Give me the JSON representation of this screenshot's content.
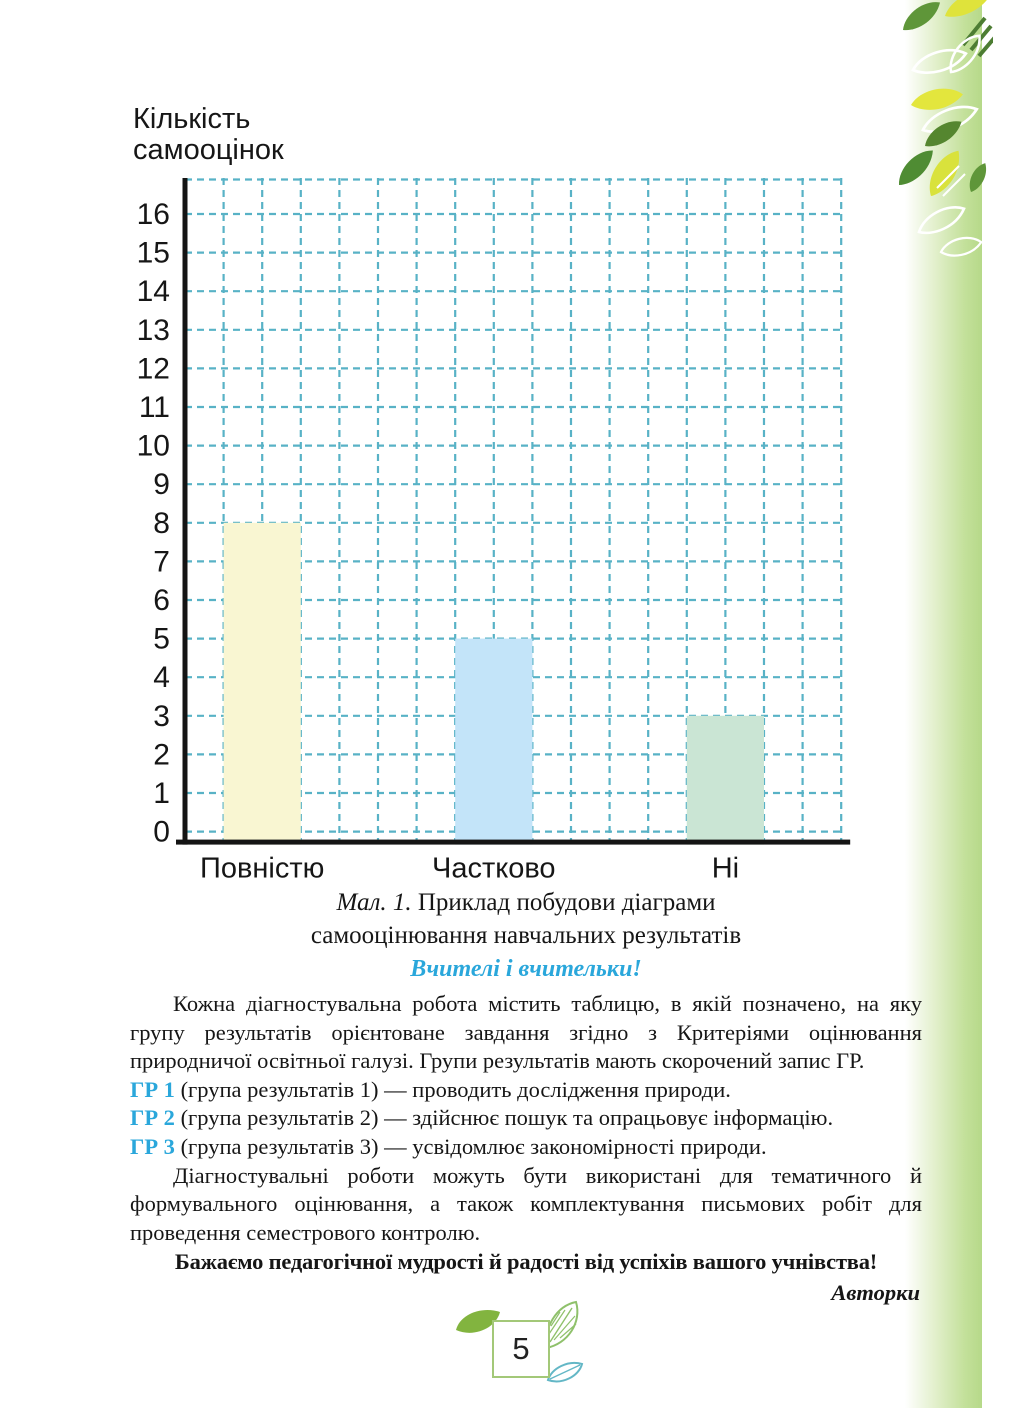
{
  "page": {
    "number": "5"
  },
  "chart_data": {
    "type": "bar",
    "title": "",
    "ylabel": "Кількість самооцінок",
    "ylabel_lines": [
      "Кількість",
      "самооцінок"
    ],
    "xlabel": "",
    "categories": [
      "Повністю",
      "Частково",
      "Ні"
    ],
    "values": [
      8,
      5,
      3
    ],
    "bar_colors": [
      "#f9f6d2",
      "#c3e4f9",
      "#cae5d4"
    ],
    "bar_positions_units": [
      1,
      7,
      13
    ],
    "bar_width_units": 2,
    "ylim": [
      0,
      16
    ],
    "ytick_step": 1,
    "grid": "dashed",
    "grid_color": "#58b2c6",
    "axis_color": "#141414",
    "legend": "none"
  },
  "caption": {
    "figure_label": "Мал. 1.",
    "line1_rest": " Приклад побудови діаграми",
    "line2": "самооцінювання навчальних результатів"
  },
  "teachers_heading": "Вчителі і вчительки!",
  "paragraphs": {
    "p1": "Кожна діагностувальна робота містить таблицю, в якій позначено, на яку групу результатів орієнтоване завдання згідно з Критеріями оцінювання природничої освітньої галузі. Групи результатів мають скорочений запис ГР.",
    "p2": "Діагностувальні роботи можуть бути використані для тематичного й формувального оцінювання, а також комплектування письмових робіт для проведення семестрового контролю."
  },
  "gr_items": [
    {
      "label": "ГР 1",
      "text": " (група результатів 1) — проводить дослідження природи."
    },
    {
      "label": "ГР 2",
      "text": " (група результатів 2) — здійснює пошук та опрацьовує інформацію."
    },
    {
      "label": "ГР 3",
      "text": " (група результатів 3) — усвідомлює закономірності природи."
    }
  ],
  "wish_line": "Бажаємо педагогічної мудрості й радості від успіхів вашого учнівства!",
  "authors_line": "Авторки",
  "colors": {
    "accent_blue": "#2aa7db",
    "band_green": "#b6d989",
    "leaf_dark_green": "#5f9639",
    "leaf_yellow": "#dfe33b",
    "footer_leaf_green": "#82b43f",
    "footer_box_border": "#a3c878",
    "teal_leaf": "#63b7c6"
  }
}
